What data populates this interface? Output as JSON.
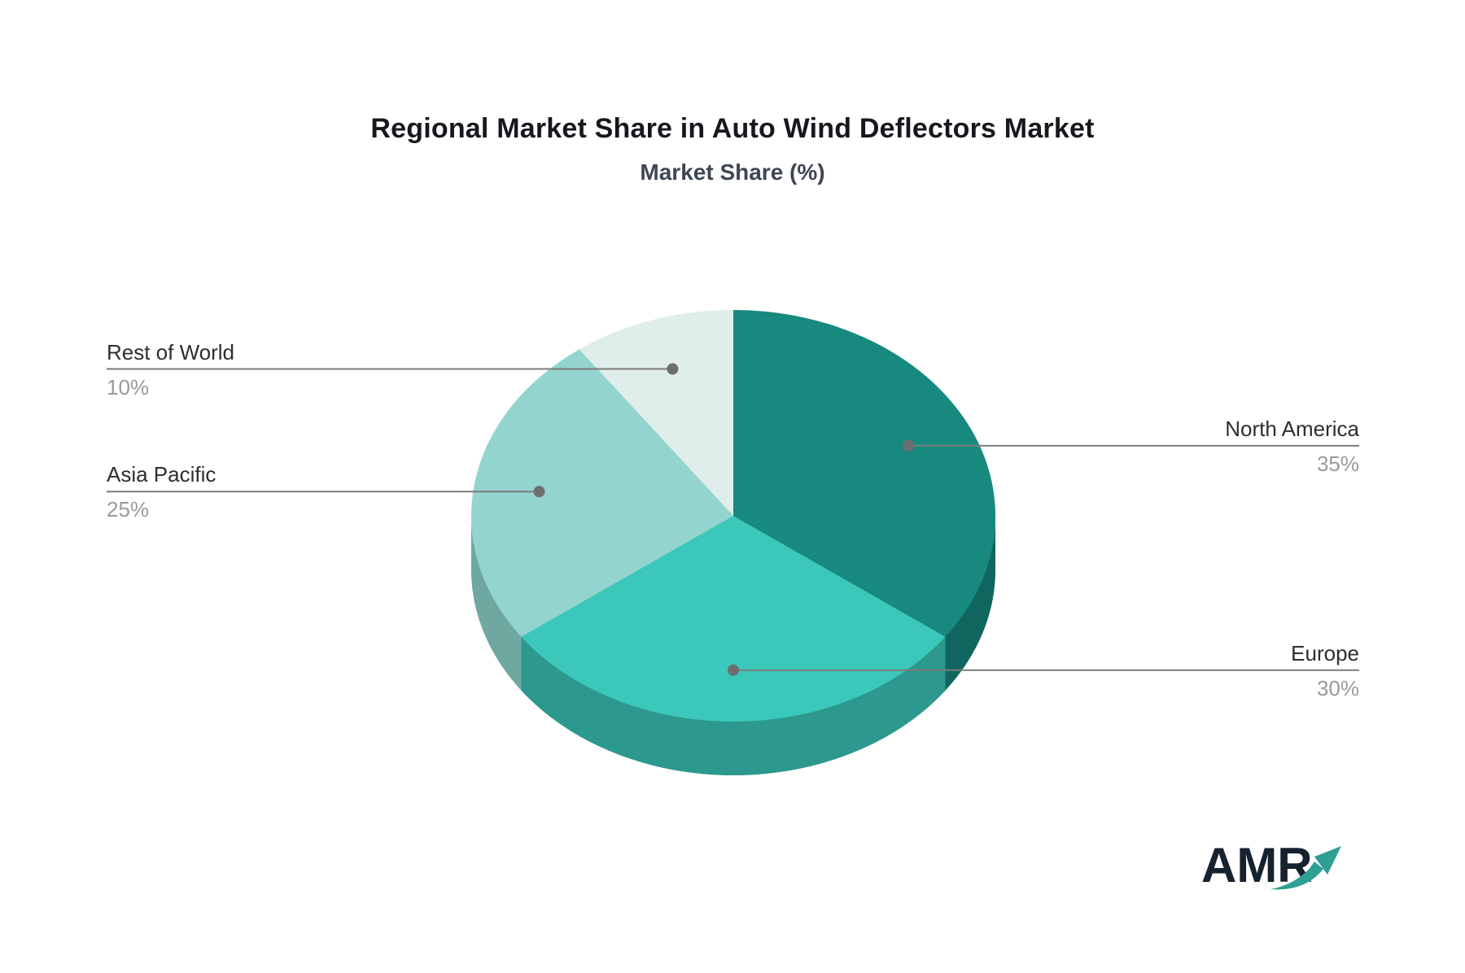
{
  "title": "Regional Market Share in Auto Wind Deflectors Market",
  "subtitle": "Market Share (%)",
  "logo": {
    "text": "AMR",
    "text_color": "#16222e",
    "arrow_color": "#2f9f93"
  },
  "chart_data": {
    "type": "pie",
    "title": "Regional Market Share in Auto Wind Deflectors Market",
    "subtitle": "Market Share (%)",
    "unit": "%",
    "style": "3d-pie",
    "start_angle_deg": 0,
    "direction": "clockwise",
    "legend_position": "none",
    "labels": "leader-lines-with-dots",
    "leader_line_color": "#7b7b7b",
    "dot_color": "#6e6e6e",
    "label_text_color": "#2e2e2e",
    "percent_text_color": "#9a9a9a",
    "slices": [
      {
        "label": "North America",
        "value": 35,
        "display": "35%",
        "color": "#18897e",
        "side_color": "#10665e",
        "label_side": "right"
      },
      {
        "label": "Europe",
        "value": 30,
        "display": "30%",
        "color": "#3bc8ba",
        "side_color": "#2c988e",
        "label_side": "right"
      },
      {
        "label": "Asia Pacific",
        "value": 25,
        "display": "25%",
        "color": "#93d5ce",
        "side_color": "#6fa8a1",
        "label_side": "left"
      },
      {
        "label": "Rest of World",
        "value": 10,
        "display": "10%",
        "color": "#dfedeb",
        "side_color": "#a8c6c2",
        "label_side": "left"
      }
    ]
  }
}
